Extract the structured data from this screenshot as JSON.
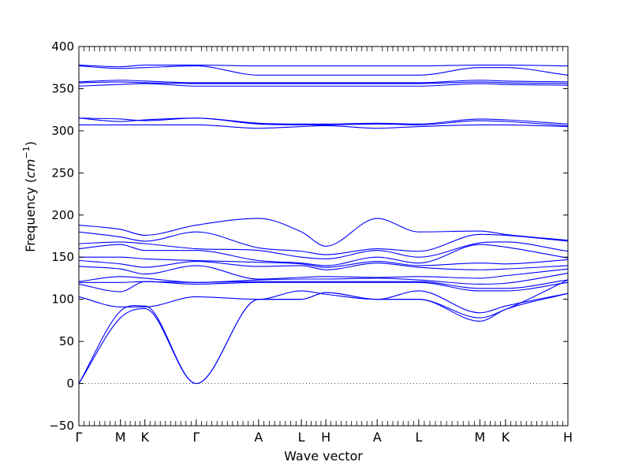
{
  "chart_data": {
    "type": "line",
    "title": "",
    "xlabel": "Wave vector",
    "ylabel": "Frequency (cm⁻¹)",
    "ylabel_pre": "Frequency (",
    "ylabel_unit": "cm",
    "ylabel_exp": "−1",
    "ylabel_post": ")",
    "ylim": [
      -50,
      400
    ],
    "yticks": [
      -50,
      0,
      50,
      100,
      150,
      200,
      250,
      300,
      350,
      400
    ],
    "x_segments": [
      "Γ-M",
      "M-K",
      "K-Γ",
      "Γ-A",
      "A-L",
      "L-H",
      "H-A",
      "A-L",
      "L-M",
      "M-K",
      "K-H"
    ],
    "high_symmetry_points": [
      {
        "label": "Γ",
        "x": 0
      },
      {
        "label": "M",
        "x": 1.7
      },
      {
        "label": "K",
        "x": 2.7
      },
      {
        "label": "Γ",
        "x": 4.8
      },
      {
        "label": "A",
        "x": 7.35
      },
      {
        "label": "L",
        "x": 9.1
      },
      {
        "label": "H",
        "x": 10.1
      },
      {
        "label": "A",
        "x": 12.2
      },
      {
        "label": "L",
        "x": 13.9
      },
      {
        "label": "M",
        "x": 16.4
      },
      {
        "label": "K",
        "x": 17.45
      },
      {
        "label": "H",
        "x": 20
      }
    ],
    "xlim": [
      0,
      20
    ],
    "zero_line": true,
    "grid": false,
    "legend": "none",
    "line_color": "#0000ff",
    "series": [
      {
        "x": [
          0,
          1.7,
          2.7,
          4.8,
          7.35,
          9.1,
          10.1,
          12.2,
          13.9,
          16.4,
          17.45,
          20
        ],
        "y": [
          378,
          376,
          378,
          378,
          377,
          377,
          377,
          377,
          377,
          378,
          378,
          377
        ]
      },
      {
        "x": [
          0,
          1.7,
          2.7,
          4.8,
          7.35,
          9.1,
          10.1,
          12.2,
          13.9,
          16.4,
          17.45,
          20
        ],
        "y": [
          377,
          374,
          375,
          377,
          366,
          366,
          366,
          366,
          366,
          375,
          375,
          366
        ]
      },
      {
        "x": [
          0,
          1.7,
          2.7,
          4.8,
          7.35,
          9.1,
          10.1,
          12.2,
          13.9,
          16.4,
          17.45,
          20
        ],
        "y": [
          358,
          360,
          359,
          357,
          357,
          357,
          357,
          357,
          357,
          360,
          359,
          358
        ]
      },
      {
        "x": [
          0,
          1.7,
          2.7,
          4.8,
          7.35,
          9.1,
          10.1,
          12.2,
          13.9,
          16.4,
          17.45,
          20
        ],
        "y": [
          357,
          358,
          357,
          356,
          356,
          356,
          356,
          356,
          356,
          358,
          357,
          356
        ]
      },
      {
        "x": [
          0,
          1.7,
          2.7,
          4.8,
          7.35,
          9.1,
          10.1,
          12.2,
          13.9,
          16.4,
          17.45,
          20
        ],
        "y": [
          353,
          355,
          356,
          353,
          353,
          353,
          353,
          353,
          353,
          356,
          355,
          354
        ]
      },
      {
        "x": [
          0,
          1.7,
          2.7,
          4.8,
          7.35,
          9.1,
          10.1,
          12.2,
          13.9,
          16.4,
          17.45,
          20
        ],
        "y": [
          315,
          314,
          312,
          315,
          309,
          308,
          308,
          309,
          308,
          314,
          313,
          308
        ]
      },
      {
        "x": [
          0,
          1.7,
          2.7,
          4.8,
          7.35,
          9.1,
          10.1,
          12.2,
          13.9,
          16.4,
          17.45,
          20
        ],
        "y": [
          315,
          311,
          313,
          315,
          308,
          307,
          307,
          308,
          307,
          312,
          311,
          306
        ]
      },
      {
        "x": [
          0,
          1.7,
          2.7,
          4.8,
          7.35,
          9.1,
          10.1,
          12.2,
          13.9,
          16.4,
          17.45,
          20
        ],
        "y": [
          307,
          307,
          307,
          307,
          303,
          305,
          306,
          303,
          305,
          307,
          307,
          305
        ]
      },
      {
        "x": [
          0,
          1.7,
          2.7,
          4.8,
          7.35,
          9.1,
          10.1,
          12.2,
          13.9,
          16.4,
          17.45,
          20
        ],
        "y": [
          188,
          183,
          176,
          188,
          196,
          180,
          163,
          196,
          180,
          181,
          177,
          170
        ]
      },
      {
        "x": [
          0,
          1.7,
          2.7,
          4.8,
          7.35,
          9.1,
          10.1,
          12.2,
          13.9,
          16.4,
          17.45,
          20
        ],
        "y": [
          180,
          174,
          169,
          180,
          161,
          157,
          153,
          160,
          157,
          177,
          176,
          169
        ]
      },
      {
        "x": [
          0,
          1.7,
          2.7,
          4.8,
          7.35,
          9.1,
          10.1,
          12.2,
          13.9,
          16.4,
          17.45,
          20
        ],
        "y": [
          166,
          168,
          166,
          160,
          158,
          150,
          148,
          158,
          150,
          167,
          168,
          157
        ]
      },
      {
        "x": [
          0,
          1.7,
          2.7,
          4.8,
          7.35,
          9.1,
          10.1,
          12.2,
          13.9,
          16.4,
          17.45,
          20
        ],
        "y": [
          160,
          165,
          158,
          158,
          146,
          143,
          140,
          150,
          143,
          165,
          162,
          149
        ]
      },
      {
        "x": [
          0,
          1.7,
          2.7,
          4.8,
          7.35,
          9.1,
          10.1,
          12.2,
          13.9,
          16.4,
          17.45,
          20
        ],
        "y": [
          150,
          150,
          148,
          146,
          144,
          142,
          138,
          145,
          140,
          143,
          142,
          147
        ]
      },
      {
        "x": [
          0,
          1.7,
          2.7,
          4.8,
          7.35,
          9.1,
          10.1,
          12.2,
          13.9,
          16.4,
          17.45,
          20
        ],
        "y": [
          146,
          142,
          138,
          145,
          139,
          140,
          135,
          143,
          138,
          135,
          136,
          140
        ]
      },
      {
        "x": [
          0,
          1.7,
          2.7,
          4.8,
          7.35,
          9.1,
          10.1,
          12.2,
          13.9,
          16.4,
          17.45,
          20
        ],
        "y": [
          139,
          136,
          130,
          140,
          124,
          126,
          127,
          126,
          127,
          125,
          128,
          136
        ]
      },
      {
        "x": [
          0,
          1.7,
          2.7,
          4.8,
          7.35,
          9.1,
          10.1,
          12.2,
          13.9,
          16.4,
          17.45,
          20
        ],
        "y": [
          121,
          127,
          125,
          120,
          123,
          124,
          124,
          125,
          123,
          118,
          119,
          131
        ]
      },
      {
        "x": [
          0,
          1.7,
          2.7,
          4.8,
          7.35,
          9.1,
          10.1,
          12.2,
          13.9,
          16.4,
          17.45,
          20
        ],
        "y": [
          120,
          120,
          121,
          120,
          121,
          121,
          121,
          121,
          121,
          113,
          113,
          123
        ]
      },
      {
        "x": [
          0,
          1.7,
          2.7,
          4.8,
          7.35,
          9.1,
          10.1,
          12.2,
          13.9,
          16.4,
          17.45,
          20
        ],
        "y": [
          118,
          109,
          121,
          118,
          120,
          120,
          120,
          120,
          120,
          110,
          110,
          120
        ]
      },
      {
        "x": [
          0,
          1.7,
          2.7,
          4.8,
          7.35,
          9.1,
          10.1,
          12.2,
          13.9,
          16.4,
          17.45,
          20
        ],
        "y": [
          103,
          91,
          91,
          103,
          100,
          110,
          106,
          100,
          110,
          84,
          92,
          107
        ]
      },
      {
        "x": [
          0,
          1.7,
          2.7,
          4.8,
          7.35,
          9.1,
          10.1,
          12.2,
          13.9,
          16.4,
          17.45,
          20
        ],
        "y": [
          0,
          86,
          92,
          0,
          100,
          100,
          108,
          100,
          100,
          78,
          88,
          123
        ]
      },
      {
        "x": [
          0,
          1.7,
          2.7,
          4.8,
          7.35,
          9.1,
          10.1,
          12.2,
          13.9,
          16.4,
          17.45,
          20
        ],
        "y": [
          0,
          78,
          89,
          0,
          100,
          100,
          108,
          100,
          100,
          74,
          88,
          107
        ]
      }
    ]
  }
}
